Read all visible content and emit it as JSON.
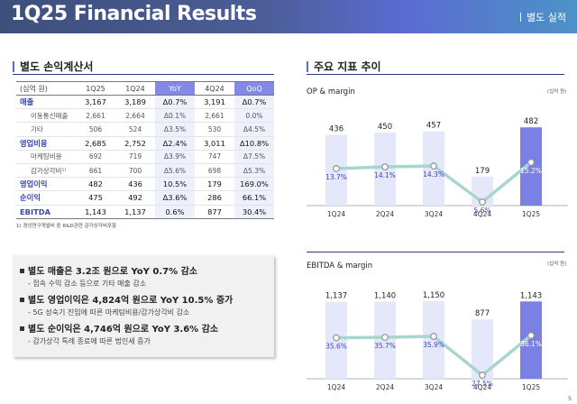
{
  "header": {
    "title": "1Q25 Financial Results",
    "tag": "별도 실적"
  },
  "left": {
    "section_title": "별도 손익계산서",
    "table": {
      "columns": [
        "(십억 원)",
        "1Q25",
        "1Q24",
        "YoY",
        "4Q24",
        "QoQ"
      ],
      "rows": [
        {
          "label": "매출",
          "type": "main",
          "values": [
            "3,167",
            "3,189",
            "Δ0.7%",
            "3,191",
            "Δ0.7%"
          ]
        },
        {
          "label": "이동통신매출",
          "type": "sub",
          "values": [
            "2,661",
            "2,664",
            "Δ0.1%",
            "2,661",
            "0.0%"
          ]
        },
        {
          "label": "기타",
          "type": "sub",
          "values": [
            "506",
            "524",
            "Δ3.5%",
            "530",
            "Δ4.5%"
          ]
        },
        {
          "label": "영업비용",
          "type": "main",
          "values": [
            "2,685",
            "2,752",
            "Δ2.4%",
            "3,011",
            "Δ10.8%"
          ]
        },
        {
          "label": "마케팅비용",
          "type": "sub",
          "values": [
            "692",
            "719",
            "Δ3.9%",
            "747",
            "Δ7.5%"
          ]
        },
        {
          "label": "감가상각비¹⁾",
          "type": "sub",
          "values": [
            "661",
            "700",
            "Δ5.6%",
            "698",
            "Δ5.3%"
          ]
        },
        {
          "label": "영업이익",
          "type": "main",
          "values": [
            "482",
            "436",
            "10.5%",
            "179",
            "169.0%"
          ]
        },
        {
          "label": "순이익",
          "type": "main",
          "values": [
            "475",
            "492",
            "Δ3.6%",
            "286",
            "66.1%"
          ]
        },
        {
          "label": "EBITDA",
          "type": "main",
          "values": [
            "1,143",
            "1,137",
            "0.6%",
            "877",
            "30.4%"
          ]
        }
      ]
    },
    "footnote": "1) 경상연구개발비 중 R&D관련 감가상각비포함"
  },
  "highlights": [
    {
      "headline": "별도 매출은 3.2조 원으로 YoY 0.7% 감소",
      "detail": "- 접속 수익 감소 등으로 기타 매출 감소"
    },
    {
      "headline": "별도 영업이익은 4,824억 원으로 YoY 10.5% 증가",
      "detail": "- 5G 성숙기 진입에 따른 마케팅비용/감가상각비 감소"
    },
    {
      "headline": "별도 순이익은 4,746억 원으로 YoY 3.6% 감소",
      "detail": "- 감가상각 특례 종료에 따른 법인세 증가"
    }
  ],
  "right": {
    "section_title": "주요 지표 추이"
  },
  "chart_data": [
    {
      "type": "bar",
      "title": "OP & margin",
      "unit": "(십억 원)",
      "categories": [
        "1Q24",
        "2Q24",
        "3Q24",
        "4Q24",
        "1Q25"
      ],
      "series": [
        {
          "name": "OP",
          "values": [
            436,
            450,
            457,
            179,
            482
          ],
          "labels": [
            "436",
            "450",
            "457",
            "179",
            "482"
          ]
        },
        {
          "name": "margin",
          "values": [
            13.7,
            14.1,
            14.3,
            5.6,
            15.2
          ],
          "labels": [
            "13.7%",
            "14.1%",
            "14.3%",
            "5.6%",
            "15.2%"
          ]
        }
      ]
    },
    {
      "type": "bar",
      "title": "EBITDA & margin",
      "unit": "(십억 원)",
      "categories": [
        "1Q24",
        "2Q24",
        "3Q24",
        "4Q24",
        "1Q25"
      ],
      "series": [
        {
          "name": "EBITDA",
          "values": [
            1137,
            1140,
            1150,
            877,
            1143
          ],
          "labels": [
            "1,137",
            "1,140",
            "1,150",
            "877",
            "1,143"
          ]
        },
        {
          "name": "margin",
          "values": [
            35.6,
            35.7,
            35.9,
            27.5,
            36.1
          ],
          "labels": [
            "35.6%",
            "35.7%",
            "35.9%",
            "27.5%",
            "36.1%"
          ]
        }
      ]
    }
  ],
  "colors": {
    "bar": "#e5e7fa",
    "bar_current": "#7b80e3",
    "line": "#a9d5cf",
    "label_pct": "#3a46b8",
    "accent": "#5b6bd1"
  },
  "page_number": "5"
}
